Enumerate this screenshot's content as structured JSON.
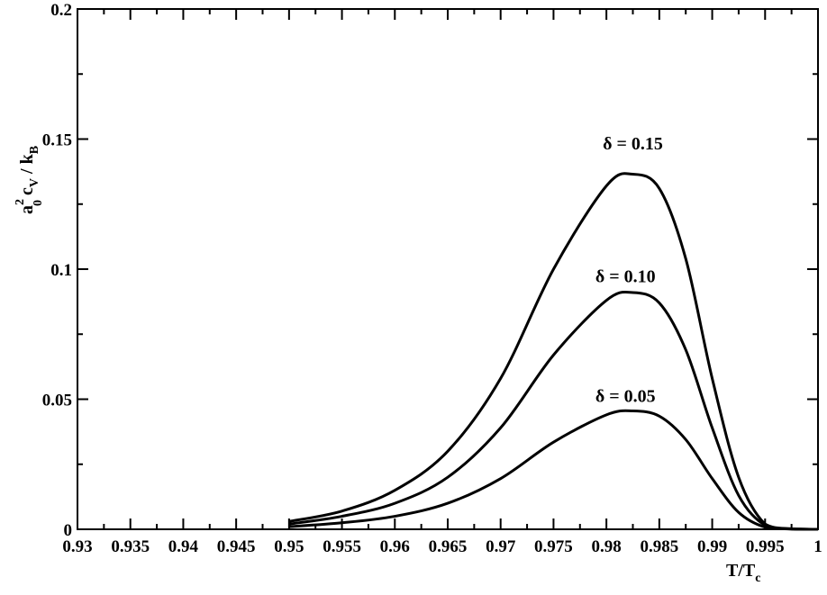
{
  "chart_data": {
    "type": "line",
    "xlabel": {
      "main": "T/T",
      "sub": "c"
    },
    "ylabel": {
      "a": "a",
      "sup": "2",
      "sub0": "0",
      "c": "c",
      "subV": "V",
      "rest": " / k",
      "subB": "B"
    },
    "xlim": [
      0.93,
      1.0
    ],
    "ylim": [
      0,
      0.2
    ],
    "x_ticks": [
      "0.93",
      "0.935",
      "0.94",
      "0.945",
      "0.95",
      "0.955",
      "0.96",
      "0.965",
      "0.97",
      "0.975",
      "0.98",
      "0.985",
      "0.99",
      "0.995",
      "1"
    ],
    "y_ticks": [
      "0",
      "0.05",
      "0.1",
      "0.15",
      "0.2"
    ],
    "grid": false,
    "series": [
      {
        "name": "δ = 0.15",
        "x": [
          0.95,
          0.955,
          0.96,
          0.965,
          0.97,
          0.975,
          0.98,
          0.9825,
          0.985,
          0.9875,
          0.99,
          0.9925,
          0.995,
          0.9975,
          1.0
        ],
        "y": [
          0.003,
          0.007,
          0.015,
          0.03,
          0.058,
          0.1,
          0.132,
          0.1365,
          0.131,
          0.104,
          0.058,
          0.02,
          0.002,
          0.0002,
          0.0
        ]
      },
      {
        "name": "δ = 0.10",
        "x": [
          0.95,
          0.955,
          0.96,
          0.965,
          0.97,
          0.975,
          0.98,
          0.9825,
          0.985,
          0.9875,
          0.99,
          0.9925,
          0.995,
          0.9975,
          1.0
        ],
        "y": [
          0.002,
          0.005,
          0.01,
          0.02,
          0.039,
          0.067,
          0.088,
          0.091,
          0.087,
          0.069,
          0.039,
          0.013,
          0.0015,
          0.0001,
          0.0
        ]
      },
      {
        "name": "δ = 0.05",
        "x": [
          0.95,
          0.955,
          0.96,
          0.965,
          0.97,
          0.975,
          0.98,
          0.9825,
          0.985,
          0.9875,
          0.99,
          0.9925,
          0.995,
          0.9975,
          1.0
        ],
        "y": [
          0.001,
          0.0025,
          0.005,
          0.01,
          0.0195,
          0.0335,
          0.044,
          0.0455,
          0.0435,
          0.0345,
          0.0195,
          0.0065,
          0.0008,
          0.0001,
          0.0
        ]
      }
    ],
    "annotations": [
      {
        "text": "δ = 0.15",
        "x": 0.9825,
        "y": 0.146
      },
      {
        "text": "δ = 0.10",
        "x": 0.9818,
        "y": 0.095
      },
      {
        "text": "δ = 0.05",
        "x": 0.9818,
        "y": 0.049
      }
    ]
  }
}
